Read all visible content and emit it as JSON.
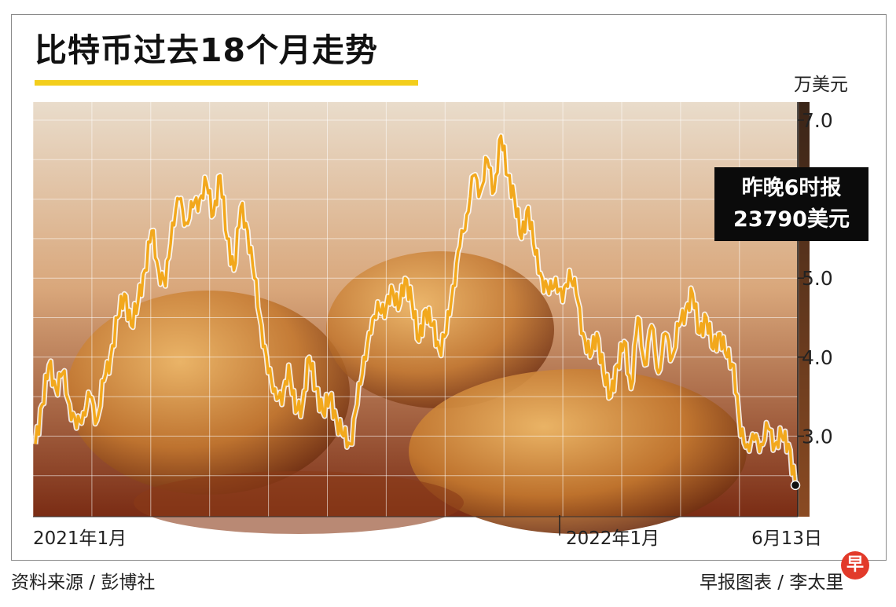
{
  "title": "比特币过去18个月走势",
  "unit_label": "万美元",
  "callout": {
    "line1": "昨晚6时报",
    "line2": "23790美元"
  },
  "source": "资料来源 / 彭博社",
  "credit": "早报图表 / 李太里",
  "logo": "早",
  "colors": {
    "line": "#f2a81d",
    "accent_underline": "#f3ce1c",
    "callout_bg": "#0b0b0b",
    "logo_bg": "#e23a2a"
  },
  "chart_data": {
    "type": "line",
    "title": "比特币过去18个月走势",
    "ylabel": "万美元",
    "ylim": [
      2.0,
      7.0
    ],
    "yticks": [
      3.0,
      4.0,
      5.0,
      7.0
    ],
    "x_tick_labels": [
      "2021年1月",
      "2022年1月",
      "6月13日"
    ],
    "grid": true,
    "series": [
      {
        "values": [
          2.9,
          3.4,
          3.9,
          3.6,
          3.8,
          3.4,
          3.1,
          3.3,
          3.5,
          3.2,
          3.7,
          4.0,
          4.5,
          4.8,
          4.4,
          4.7,
          5.1,
          5.6,
          5.1,
          4.9,
          5.7,
          6.0,
          5.7,
          5.9,
          6.0,
          6.2,
          5.8,
          6.3,
          5.5,
          5.1,
          5.9,
          5.6,
          5.0,
          4.4,
          3.8,
          3.6,
          3.4,
          3.9,
          3.3,
          3.4,
          4.0,
          3.6,
          3.3,
          3.5,
          3.2,
          3.0,
          2.9,
          3.4,
          4.0,
          4.3,
          4.7,
          4.5,
          4.9,
          4.6,
          5.0,
          4.7,
          4.2,
          4.6,
          4.4,
          4.1,
          4.3,
          4.9,
          5.4,
          5.8,
          6.3,
          6.1,
          6.5,
          6.1,
          6.8,
          6.3,
          6.0,
          5.5,
          5.9,
          5.3,
          5.0,
          4.8,
          5.0,
          4.7,
          5.1,
          4.8,
          4.3,
          4.0,
          4.3,
          3.8,
          3.5,
          3.9,
          4.2,
          3.6,
          4.5,
          3.9,
          4.4,
          3.8,
          4.3,
          4.0,
          4.4,
          4.6,
          4.8,
          4.3,
          4.5,
          4.1,
          4.3,
          4.0,
          3.9,
          3.0,
          2.9,
          2.95,
          2.9,
          3.1,
          2.9,
          3.0,
          2.9,
          2.38
        ]
      }
    ],
    "last_point": {
      "date": "6月13日",
      "value": 2.379
    }
  }
}
